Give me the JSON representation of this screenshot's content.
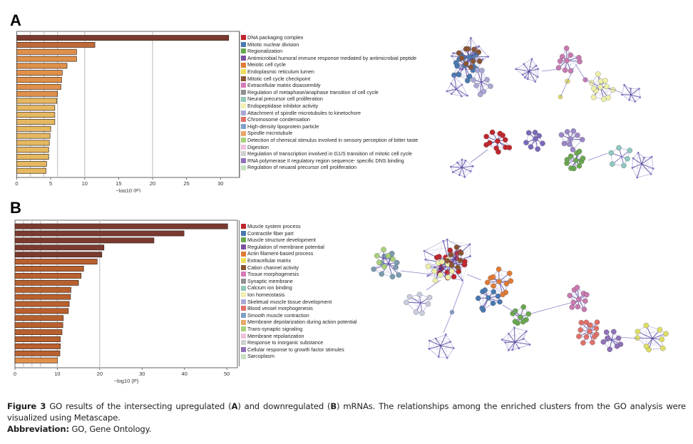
{
  "panels": {
    "A": {
      "label": "A"
    },
    "B": {
      "label": "B"
    }
  },
  "chart_data": [
    {
      "type": "bar",
      "orientation": "horizontal",
      "panel": "A",
      "title": "",
      "xlabel": "−log10 (P)",
      "ylabel": "",
      "xlim": [
        0,
        32.8
      ],
      "xticks": [
        0,
        5,
        10,
        15,
        20,
        25,
        30
      ],
      "gridlines": [
        2,
        4,
        6,
        10,
        20
      ],
      "grid": true,
      "legend_position": "right",
      "categories": [
        "DNA packaging complex",
        "Mitotic nuclear division",
        "Regionalization",
        "Antimicrobial humoral immune response mediated by antimicrobial peptide",
        "Meiotic cell cycle",
        "Endoplasmic reticulum lumen",
        "Mitotic cell cycle checkpoint",
        "Extracellular matrix disassembly",
        "Regulation of metaphase/anaphase transition of cell cycle",
        "Neural precursor cell proliferation",
        "Endopeptidase inhibitor activity",
        "Attachment of spindle microtubules to kinetochore",
        "Chromosome condensation",
        "High-density lipoprotein particle",
        "Spindle microtubule",
        "Detection of chemical stimulus involved in sensory perception of bitter taste",
        "Digestion",
        "Regulation of transcription involved in G1/S transition of mitotic cell cycle",
        "RNA polymerase II regulatory region sequence- specific DNS binding",
        "Regulation of neuaral precursor cell proliferation"
      ],
      "values": [
        31.2,
        11.5,
        8.8,
        8.8,
        7.4,
        6.7,
        6.6,
        6.5,
        6.0,
        5.9,
        5.6,
        5.6,
        5.6,
        5.0,
        4.9,
        4.8,
        4.7,
        4.7,
        4.4,
        4.3
      ],
      "bar_colors": [
        "#7b3a30",
        "#c06a3a",
        "#e0904a",
        "#e0904a",
        "#e0904a",
        "#e0904a",
        "#e0904a",
        "#e0904a",
        "#e0904a",
        "#e6b860",
        "#e6b860",
        "#e6b860",
        "#e6b860",
        "#e6b860",
        "#e6b860",
        "#e6b860",
        "#e6b860",
        "#e6b860",
        "#e6b860",
        "#e6b860"
      ],
      "legend_colors": [
        "#c0262d",
        "#4a78b0",
        "#6aa84f",
        "#7a4fa0",
        "#e07b35",
        "#eedd55",
        "#8a5535",
        "#d67ab8",
        "#909090",
        "#8fc8b8",
        "#f2efb0",
        "#a9a8d4",
        "#e0706a",
        "#7fa0c8",
        "#eba86a",
        "#a8d07a",
        "#f0c0dc",
        "#d0d0d0",
        "#9070b8",
        "#c8e0c0"
      ]
    },
    {
      "type": "bar",
      "orientation": "horizontal",
      "panel": "B",
      "title": "",
      "xlabel": "−log10 (P)",
      "ylabel": "",
      "xlim": [
        0,
        52.5
      ],
      "xticks": [
        0,
        10,
        20,
        30,
        40,
        50
      ],
      "gridlines": [
        2,
        4,
        6,
        10,
        20
      ],
      "grid": true,
      "legend_position": "right",
      "categories": [
        "Muscle system process",
        "Contractile fiber part",
        "Muscle structure development",
        "Regulation of membrane potential",
        "Actin filament-based process",
        "Extracellular matrix",
        "Cation channel activity",
        "Tissue morphogenesis",
        "Synaptic membrane",
        "Calcium ion binding",
        "Ion homeostasis",
        "Skeletual muscle tissue development",
        "Blood vessel morphogenesis",
        "Smooth muscle contraction",
        "Membrane depolarization during action potential",
        "Trans-synaptic signaling",
        "Membrane repolarization",
        "Response to inorganic substance",
        "Cellular response to growth factor stimules",
        "Sarcoplasm"
      ],
      "values": [
        50.2,
        39.9,
        32.8,
        21.0,
        20.5,
        19.4,
        16.2,
        15.6,
        15.0,
        13.2,
        13.1,
        12.8,
        12.6,
        11.4,
        11.3,
        11.1,
        10.7,
        10.7,
        10.6,
        10.0
      ],
      "bar_colors": [
        "#7b3a30",
        "#7b3a30",
        "#7b3a30",
        "#7b3a30",
        "#7b3a30",
        "#b9602f",
        "#b9602f",
        "#b9602f",
        "#b9602f",
        "#b9602f",
        "#b9602f",
        "#b9602f",
        "#b9602f",
        "#b9602f",
        "#b9602f",
        "#b9602f",
        "#b9602f",
        "#b9602f",
        "#b9602f",
        "#e0904a"
      ],
      "legend_colors": [
        "#c0262d",
        "#4a78b0",
        "#6aa84f",
        "#7a4fa0",
        "#e07b35",
        "#eedd55",
        "#8a5535",
        "#d67ab8",
        "#909090",
        "#8fc8b8",
        "#f2efb0",
        "#a9a8d4",
        "#e0706a",
        "#7fa0c8",
        "#eba86a",
        "#a8d07a",
        "#f0c0dc",
        "#d0d0d0",
        "#9070b8",
        "#c8e0c0"
      ]
    }
  ],
  "caption": {
    "figure_label": "Figure 3",
    "text_1": " GO results of the intersecting upregulated (",
    "A": "A",
    "text_2": ") and downregulated (",
    "B": "B",
    "text_3": ") mRNAs. The relationships among the enriched clusters from the GO analysis were visualized using Metascape.",
    "abbrev_label": "Abbreviation:",
    "abbrev_text": " GO, Gene Ontology."
  }
}
